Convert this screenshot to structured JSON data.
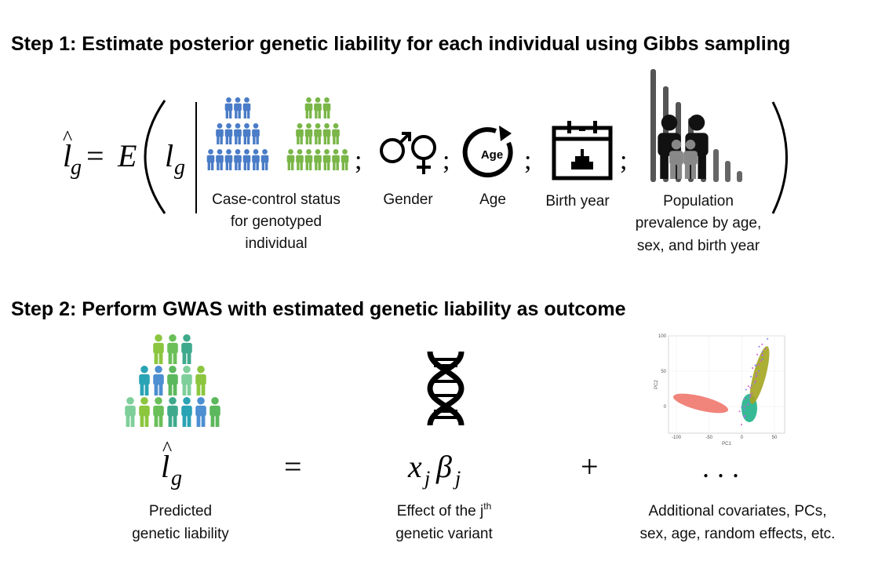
{
  "step1": {
    "title": "Step 1: Estimate posterior genetic liability for each individual using Gibbs sampling",
    "formula": {
      "hat": "^",
      "lhs": "l",
      "lhs_sub": "g",
      "equals": "=",
      "func": "E",
      "arg": "l",
      "arg_sub": "g",
      "separator": ";"
    },
    "age_icon_text": "Age",
    "labels": {
      "case_control": [
        "Case-control status",
        "for genotyped",
        "individual"
      ],
      "gender": "Gender",
      "age": "Age",
      "birth_year": "Birth year",
      "prevalence": [
        "Population",
        "prevalence by age,",
        "sex, and birth year"
      ]
    }
  },
  "step2": {
    "title": "Step 2: Perform GWAS with estimated genetic liability as outcome",
    "formula": {
      "hat": "^",
      "lhs": "l",
      "lhs_sub": "g",
      "equals": "=",
      "x": "x",
      "x_sub": "j",
      "beta": "β",
      "beta_sub": "j",
      "plus": "+",
      "ellipsis": "..."
    },
    "pca_plot": {
      "y_ticks": [
        100,
        50,
        0
      ],
      "x_ticks": [
        -100,
        -50,
        0,
        50
      ],
      "x_label": "PC1",
      "y_label": "PC2"
    },
    "labels": {
      "predicted": [
        "Predicted",
        "genetic liability"
      ],
      "effect": {
        "text": "Effect of the j",
        "superscript": "th",
        "line2": "genetic variant"
      },
      "covariates": [
        "Additional covariates, PCs,",
        "sex, age, random effects, etc."
      ]
    }
  }
}
